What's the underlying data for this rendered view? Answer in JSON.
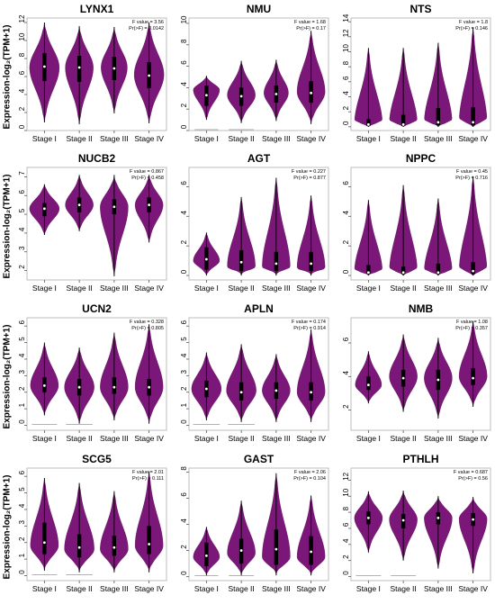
{
  "figure": {
    "ylabel": "Expression-log₂(TPM+1)",
    "stages": [
      "Stage I",
      "Stage II",
      "Stage III",
      "Stage IV"
    ],
    "colors": {
      "violin": "#7b1778",
      "box": "#000000",
      "median": "#ffffff",
      "frame": "#bdbdbd"
    }
  },
  "chart_data": [
    {
      "type": "violin",
      "title": "LYNX1",
      "f_text": "F value = 3.56",
      "p_text": "Pr(>F) = 0.0142",
      "ylim": [
        0,
        12.5
      ],
      "yticks": [
        0,
        2,
        4,
        6,
        8,
        10,
        12
      ],
      "categories": [
        "Stage I",
        "Stage II",
        "Stage III",
        "Stage IV"
      ],
      "series": [
        {
          "min": 0.9,
          "q1": 5.5,
          "median": 7.1,
          "q3": 8.6,
          "max": 12.0,
          "mode": 7.0,
          "width": 0.85
        },
        {
          "min": 0.7,
          "q1": 5.4,
          "median": 7.0,
          "q3": 8.3,
          "max": 11.6,
          "mode": 7.0,
          "width": 0.8
        },
        {
          "min": 1.9,
          "q1": 5.6,
          "median": 6.9,
          "q3": 8.2,
          "max": 11.5,
          "mode": 7.0,
          "width": 0.75
        },
        {
          "min": 0.8,
          "q1": 4.7,
          "median": 6.1,
          "q3": 7.6,
          "max": 12.0,
          "mode": 6.2,
          "width": 0.85
        }
      ]
    },
    {
      "type": "violin",
      "title": "NMU",
      "f_text": "F value = 1.68",
      "p_text": "Pr(>F) = 0.17",
      "ylim": [
        0,
        10.5
      ],
      "yticks": [
        0,
        2,
        4,
        6,
        8,
        10
      ],
      "categories": [
        "Stage I",
        "Stage II",
        "Stage III",
        "Stage IV"
      ],
      "series": [
        {
          "min": 1.0,
          "q1": 2.3,
          "median": 3.3,
          "q3": 4.2,
          "max": 5.1,
          "mode": 3.8,
          "width": 0.75,
          "zero_line": true
        },
        {
          "min": 0.7,
          "q1": 2.3,
          "median": 3.2,
          "q3": 4.0,
          "max": 6.5,
          "mode": 3.3,
          "width": 0.8,
          "zero_line": true
        },
        {
          "min": 0.9,
          "q1": 2.6,
          "median": 3.4,
          "q3": 4.2,
          "max": 6.6,
          "mode": 3.5,
          "width": 0.7
        },
        {
          "min": 0.6,
          "q1": 2.6,
          "median": 3.5,
          "q3": 4.6,
          "max": 9.3,
          "mode": 3.6,
          "width": 0.8
        }
      ]
    },
    {
      "type": "violin",
      "title": "NTS",
      "f_text": "F value = 1.8",
      "p_text": "Pr(>F) = 0.146",
      "ylim": [
        -0.5,
        14.5
      ],
      "yticks": [
        0,
        2,
        4,
        6,
        8,
        10,
        12,
        14
      ],
      "categories": [
        "Stage I",
        "Stage II",
        "Stage III",
        "Stage IV"
      ],
      "series": [
        {
          "min": 0.0,
          "q1": 0.1,
          "median": 0.3,
          "q3": 1.0,
          "max": 10.5,
          "mode": 0.3,
          "width": 0.8
        },
        {
          "min": 0.0,
          "q1": 0.1,
          "median": 0.3,
          "q3": 1.6,
          "max": 10.5,
          "mode": 0.3,
          "width": 0.8
        },
        {
          "min": 0.0,
          "q1": 0.2,
          "median": 0.6,
          "q3": 2.5,
          "max": 11.2,
          "mode": 0.4,
          "width": 0.8
        },
        {
          "min": 0.0,
          "q1": 0.2,
          "median": 0.6,
          "q3": 2.6,
          "max": 13.2,
          "mode": 0.4,
          "width": 0.8
        }
      ]
    },
    {
      "type": "violin",
      "title": "NUCB2",
      "f_text": "F value = 0.867",
      "p_text": "Pr(>F) = 0.458",
      "ylim": [
        1.5,
        7.5
      ],
      "yticks": [
        2,
        3,
        4,
        5,
        6,
        7
      ],
      "categories": [
        "Stage I",
        "Stage II",
        "Stage III",
        "Stage IV"
      ],
      "series": [
        {
          "min": 3.9,
          "q1": 4.9,
          "median": 5.3,
          "q3": 5.6,
          "max": 6.6,
          "mode": 5.3,
          "width": 0.85
        },
        {
          "min": 4.1,
          "q1": 5.1,
          "median": 5.5,
          "q3": 5.9,
          "max": 7.1,
          "mode": 5.5,
          "width": 0.8
        },
        {
          "min": 1.7,
          "q1": 5.0,
          "median": 5.4,
          "q3": 5.8,
          "max": 7.1,
          "mode": 5.4,
          "width": 0.8
        },
        {
          "min": 3.5,
          "q1": 5.1,
          "median": 5.5,
          "q3": 5.9,
          "max": 7.1,
          "mode": 5.5,
          "width": 0.8
        }
      ]
    },
    {
      "type": "violin",
      "title": "AGT",
      "f_text": "F value = 0.227",
      "p_text": "Pr(>F) = 0.877",
      "ylim": [
        -0.3,
        7.3
      ],
      "yticks": [
        0,
        2,
        4,
        6
      ],
      "categories": [
        "Stage I",
        "Stage II",
        "Stage III",
        "Stage IV"
      ],
      "series": [
        {
          "min": 0.0,
          "q1": 0.4,
          "median": 1.1,
          "q3": 1.9,
          "max": 2.9,
          "mode": 1.0,
          "width": 0.75
        },
        {
          "min": 0.0,
          "q1": 0.3,
          "median": 0.9,
          "q3": 1.7,
          "max": 5.3,
          "mode": 0.6,
          "width": 0.8
        },
        {
          "min": 0.0,
          "q1": 0.3,
          "median": 0.8,
          "q3": 1.6,
          "max": 6.6,
          "mode": 0.5,
          "width": 0.8
        },
        {
          "min": 0.0,
          "q1": 0.3,
          "median": 0.8,
          "q3": 1.6,
          "max": 5.4,
          "mode": 0.5,
          "width": 0.8
        }
      ]
    },
    {
      "type": "violin",
      "title": "NPPC",
      "f_text": "F value = 0.45",
      "p_text": "Pr(>F) = 0.716",
      "ylim": [
        -0.3,
        7.3
      ],
      "yticks": [
        0,
        2,
        4,
        6
      ],
      "categories": [
        "Stage I",
        "Stage II",
        "Stage III",
        "Stage IV"
      ],
      "series": [
        {
          "min": 0.0,
          "q1": 0.1,
          "median": 0.2,
          "q3": 0.7,
          "max": 5.1,
          "mode": 0.2,
          "width": 0.8
        },
        {
          "min": 0.0,
          "q1": 0.1,
          "median": 0.2,
          "q3": 0.6,
          "max": 6.1,
          "mode": 0.2,
          "width": 0.8
        },
        {
          "min": 0.0,
          "q1": 0.1,
          "median": 0.2,
          "q3": 0.8,
          "max": 5.2,
          "mode": 0.2,
          "width": 0.8
        },
        {
          "min": 0.0,
          "q1": 0.1,
          "median": 0.3,
          "q3": 0.9,
          "max": 6.7,
          "mode": 0.2,
          "width": 0.8
        }
      ]
    },
    {
      "type": "violin",
      "title": "UCN2",
      "f_text": "F value = 0.328",
      "p_text": "Pr(>F) = 0.805",
      "ylim": [
        -0.3,
        6.5
      ],
      "yticks": [
        0,
        1,
        2,
        3,
        4,
        5,
        6
      ],
      "categories": [
        "Stage I",
        "Stage II",
        "Stage III",
        "Stage IV"
      ],
      "series": [
        {
          "min": 0.6,
          "q1": 2.0,
          "median": 2.4,
          "q3": 2.9,
          "max": 5.0,
          "mode": 2.4,
          "width": 0.8,
          "zero_line": true
        },
        {
          "min": 0.1,
          "q1": 1.8,
          "median": 2.3,
          "q3": 2.8,
          "max": 4.7,
          "mode": 2.3,
          "width": 0.85,
          "zero_line": true
        },
        {
          "min": 0.3,
          "q1": 1.9,
          "median": 2.3,
          "q3": 2.9,
          "max": 5.6,
          "mode": 2.3,
          "width": 0.8
        },
        {
          "min": 0.1,
          "q1": 1.8,
          "median": 2.3,
          "q3": 2.8,
          "max": 6.1,
          "mode": 2.3,
          "width": 0.8
        }
      ]
    },
    {
      "type": "violin",
      "title": "APLN",
      "f_text": "F value = 0.174",
      "p_text": "Pr(>F) = 0.914",
      "ylim": [
        -0.3,
        6.5
      ],
      "yticks": [
        0,
        1,
        2,
        3,
        4,
        5,
        6
      ],
      "categories": [
        "Stage I",
        "Stage II",
        "Stage III",
        "Stage IV"
      ],
      "series": [
        {
          "min": 0.3,
          "q1": 1.7,
          "median": 2.2,
          "q3": 2.7,
          "max": 4.4,
          "mode": 2.2,
          "width": 0.85,
          "zero_line": true
        },
        {
          "min": 0.2,
          "q1": 1.5,
          "median": 2.0,
          "q3": 2.6,
          "max": 4.9,
          "mode": 2.1,
          "width": 0.85,
          "zero_line": true
        },
        {
          "min": 0.2,
          "q1": 1.6,
          "median": 2.1,
          "q3": 2.6,
          "max": 4.3,
          "mode": 2.1,
          "width": 0.8
        },
        {
          "min": 0.2,
          "q1": 1.5,
          "median": 2.0,
          "q3": 2.6,
          "max": 5.8,
          "mode": 2.0,
          "width": 0.8
        }
      ]
    },
    {
      "type": "violin",
      "title": "NMB",
      "f_text": "F value = 1.08",
      "p_text": "Pr(>F) = 0.357",
      "ylim": [
        0.8,
        7.5
      ],
      "yticks": [
        2,
        4,
        6
      ],
      "categories": [
        "Stage I",
        "Stage II",
        "Stage III",
        "Stage IV"
      ],
      "series": [
        {
          "min": 2.4,
          "q1": 3.2,
          "median": 3.5,
          "q3": 4.0,
          "max": 5.5,
          "mode": 3.5,
          "width": 0.75
        },
        {
          "min": 1.9,
          "q1": 3.4,
          "median": 3.9,
          "q3": 4.4,
          "max": 6.5,
          "mode": 4.0,
          "width": 0.8
        },
        {
          "min": 1.5,
          "q1": 3.2,
          "median": 3.8,
          "q3": 4.4,
          "max": 6.3,
          "mode": 3.9,
          "width": 0.8
        },
        {
          "min": 2.2,
          "q1": 3.5,
          "median": 3.9,
          "q3": 4.5,
          "max": 7.3,
          "mode": 4.0,
          "width": 0.8
        }
      ]
    },
    {
      "type": "violin",
      "title": "SCG5",
      "f_text": "F value = 2.01",
      "p_text": "Pr(>F) = 0.111",
      "ylim": [
        -0.3,
        6.5
      ],
      "yticks": [
        0,
        1,
        2,
        3,
        4,
        5,
        6
      ],
      "categories": [
        "Stage I",
        "Stage II",
        "Stage III",
        "Stage IV"
      ],
      "series": [
        {
          "min": 0.3,
          "q1": 1.3,
          "median": 2.0,
          "q3": 3.2,
          "max": 5.9,
          "mode": 1.8,
          "width": 0.8,
          "zero_line": true
        },
        {
          "min": 0.2,
          "q1": 1.1,
          "median": 1.7,
          "q3": 2.5,
          "max": 5.6,
          "mode": 1.6,
          "width": 0.85,
          "zero_line": true
        },
        {
          "min": 0.2,
          "q1": 1.2,
          "median": 1.7,
          "q3": 2.4,
          "max": 5.1,
          "mode": 1.6,
          "width": 0.8
        },
        {
          "min": 0.2,
          "q1": 1.3,
          "median": 1.9,
          "q3": 3.0,
          "max": 6.3,
          "mode": 1.8,
          "width": 0.8
        }
      ]
    },
    {
      "type": "violin",
      "title": "GAST",
      "f_text": "F value = 2.06",
      "p_text": "Pr(>F) = 0.104",
      "ylim": [
        -0.3,
        8.3
      ],
      "yticks": [
        0,
        2,
        4,
        6,
        8
      ],
      "categories": [
        "Stage I",
        "Stage II",
        "Stage III",
        "Stage IV"
      ],
      "series": [
        {
          "min": 0.1,
          "q1": 0.8,
          "median": 1.6,
          "q3": 2.6,
          "max": 3.8,
          "mode": 1.5,
          "width": 0.75,
          "zero_line": true
        },
        {
          "min": 0.1,
          "q1": 1.0,
          "median": 2.0,
          "q3": 2.9,
          "max": 5.8,
          "mode": 1.8,
          "width": 0.8,
          "zero_line": true
        },
        {
          "min": 0.1,
          "q1": 0.9,
          "median": 2.1,
          "q3": 3.6,
          "max": 7.9,
          "mode": 1.5,
          "width": 0.8
        },
        {
          "min": 0.1,
          "q1": 0.9,
          "median": 1.9,
          "q3": 3.1,
          "max": 6.2,
          "mode": 1.5,
          "width": 0.8
        }
      ]
    },
    {
      "type": "violin",
      "title": "PTHLH",
      "f_text": "F value = 0.687",
      "p_text": "Pr(>F) = 0.56",
      "ylim": [
        -0.5,
        13.5
      ],
      "yticks": [
        0,
        2,
        4,
        6,
        8,
        10,
        12
      ],
      "categories": [
        "Stage I",
        "Stage II",
        "Stage III",
        "Stage IV"
      ],
      "series": [
        {
          "min": 3.0,
          "q1": 6.5,
          "median": 7.3,
          "q3": 8.1,
          "max": 10.6,
          "mode": 7.3,
          "width": 0.8,
          "zero_line": true
        },
        {
          "min": 2.0,
          "q1": 6.0,
          "median": 7.0,
          "q3": 7.8,
          "max": 10.7,
          "mode": 7.1,
          "width": 0.8,
          "zero_line": true
        },
        {
          "min": 1.0,
          "q1": 6.5,
          "median": 7.3,
          "q3": 8.0,
          "max": 10.0,
          "mode": 7.3,
          "width": 0.8
        },
        {
          "min": 0.4,
          "q1": 6.3,
          "median": 7.1,
          "q3": 7.9,
          "max": 9.9,
          "mode": 7.2,
          "width": 0.8
        }
      ]
    }
  ]
}
